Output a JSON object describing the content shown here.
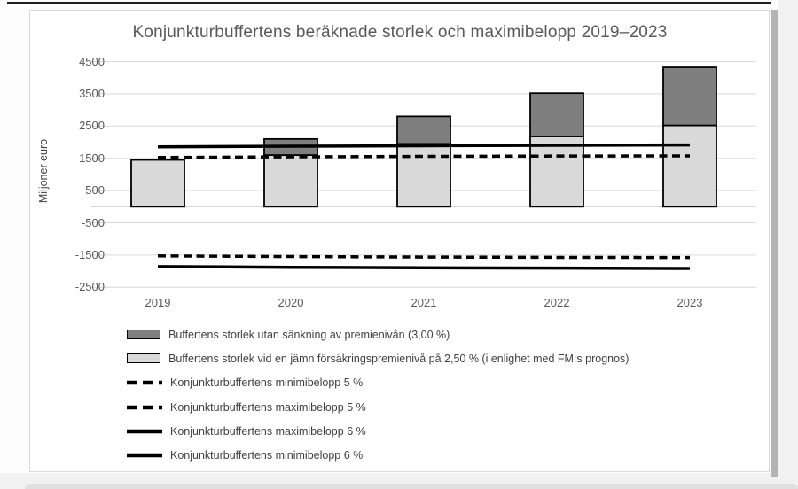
{
  "page": {
    "title": "Konjunkturbuffertens beräknade storlek och maximibelopp 2019–2023",
    "y_axis_title": "Miljoner euro"
  },
  "colors": {
    "bar_dark": "#7f7f7f",
    "bar_light": "#d9d9d9",
    "bar_border": "#000000",
    "line": "#000000",
    "grid": "#d9d9d9",
    "zero_line": "#c9c9c9",
    "text": "#595959"
  },
  "chart_data": {
    "type": "bar",
    "title": "Konjunkturbuffertens beräknade storlek och maximibelopp 2019–2023",
    "xlabel": "",
    "ylabel": "Miljoner euro",
    "categories": [
      "2019",
      "2020",
      "2021",
      "2022",
      "2023"
    ],
    "yticks": [
      4500,
      3500,
      2500,
      1500,
      500,
      -500,
      -1500,
      -2500
    ],
    "ylim": [
      -2900,
      4950
    ],
    "grid": true,
    "legend_position": "bottom-left",
    "series": [
      {
        "name": "Buffertens storlek utan sänkning av premienivån (3,00 %)",
        "kind": "bar-stack-total",
        "color": "#7f7f7f",
        "values": [
          1450,
          2100,
          2800,
          3520,
          4320
        ]
      },
      {
        "name": "Buffertens storlek vid en jämn försäkringspremienivå på 2,50 % (i enlighet med FM:s prognos)",
        "kind": "bar-stack-base",
        "color": "#d9d9d9",
        "values": [
          1450,
          1600,
          1950,
          2180,
          2520
        ]
      },
      {
        "name": "Konjunkturbuffertens minimibelopp 5 %",
        "kind": "line",
        "style": "dashed",
        "color": "#000000",
        "values": [
          -1525,
          -1545,
          -1560,
          -1570,
          -1575
        ]
      },
      {
        "name": "Konjunkturbuffertens maximibelopp 5 %",
        "kind": "line",
        "style": "dashed",
        "color": "#000000",
        "values": [
          1525,
          1545,
          1560,
          1570,
          1575
        ]
      },
      {
        "name": "Konjunkturbuffertens maximibelopp 6 %",
        "kind": "line",
        "style": "solid",
        "color": "#000000",
        "values": [
          1855,
          1875,
          1890,
          1905,
          1915
        ]
      },
      {
        "name": "Konjunkturbuffertens minimibelopp 6 %",
        "kind": "line",
        "style": "solid",
        "color": "#000000",
        "values": [
          -1855,
          -1880,
          -1895,
          -1905,
          -1915
        ]
      }
    ]
  }
}
